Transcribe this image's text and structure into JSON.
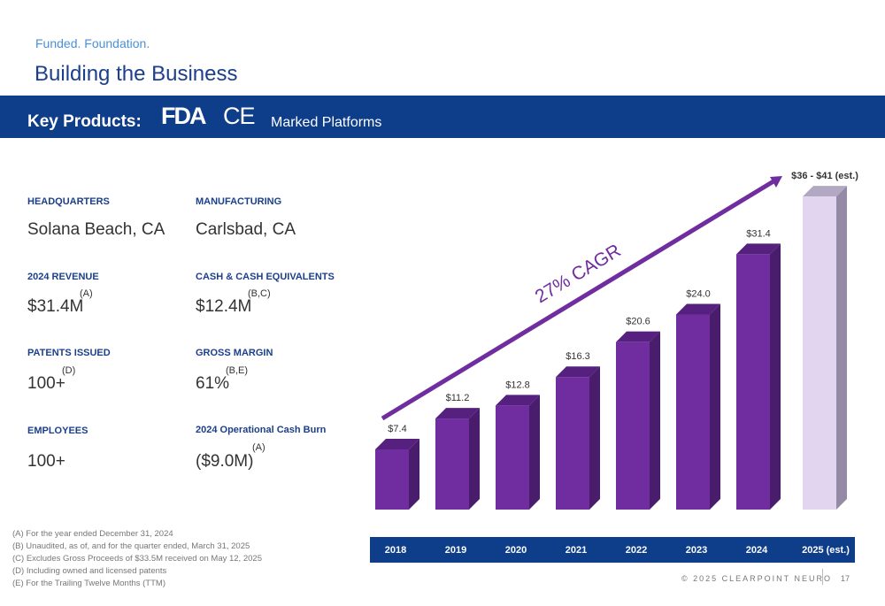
{
  "header": {
    "eyebrow": "Funded. Foundation.",
    "title": "Building the Business"
  },
  "band": {
    "label": "Key Products:",
    "fda_logo": "FDA",
    "ce_logo": "CE",
    "suffix": "Marked Platforms",
    "color": "#0e3d8a"
  },
  "stats": [
    {
      "label": "HEADQUARTERS",
      "value": "Solana Beach, CA",
      "note": ""
    },
    {
      "label": "MANUFACTURING",
      "value": "Carlsbad, CA",
      "note": ""
    },
    {
      "label": "2024 REVENUE",
      "value": "$31.4M",
      "note": "(A)"
    },
    {
      "label": "CASH & CASH EQUIVALENTS",
      "value": "$12.4M",
      "note": "(B,C)"
    },
    {
      "label": "PATENTS ISSUED",
      "value": "100+",
      "note": "(D)"
    },
    {
      "label": "GROSS MARGIN",
      "value": "61%",
      "note": "(B,E)"
    },
    {
      "label": "EMPLOYEES",
      "value": "100+",
      "note": ""
    },
    {
      "label": "2024 Operational Cash Burn",
      "value": "($9.0M)",
      "note": "(A)"
    }
  ],
  "footnotes": [
    "(A)   For the year ended December 31, 2024",
    "(B)   Unaudited, as of, and for the quarter ended, March 31, 2025",
    "(C)   Excludes Gross Proceeds of $33.5M received on May 12, 2025",
    "(D)   Including owned and licensed patents",
    "(E)   For the Trailing Twelve Months (TTM)"
  ],
  "footer": {
    "copyright": "© 2025 CLEARPOINT NEURO",
    "page": "17"
  },
  "chart_data": {
    "type": "bar",
    "categories": [
      "2018",
      "2019",
      "2020",
      "2021",
      "2022",
      "2023",
      "2024",
      "2025 (est.)"
    ],
    "values": [
      7.4,
      11.2,
      12.8,
      16.3,
      20.6,
      24.0,
      31.4,
      38.5
    ],
    "estimate_range": [
      36,
      41
    ],
    "data_labels": [
      "$7.4",
      "$11.2",
      "$12.8",
      "$16.3",
      "$20.6",
      "$24.0",
      "$31.4",
      "$36 - $41 (est.)"
    ],
    "annotation": "27% CAGR",
    "ylim": [
      0,
      41
    ],
    "grid": false,
    "colors": {
      "bar": "#6f2da0",
      "bar_side": "#4a1c6c",
      "bar_top": "#55207e",
      "estimate": "#e1d5ef",
      "estimate_side": "#958aa5",
      "estimate_top": "#b3a8c2",
      "arrow": "#6f2da0"
    }
  }
}
